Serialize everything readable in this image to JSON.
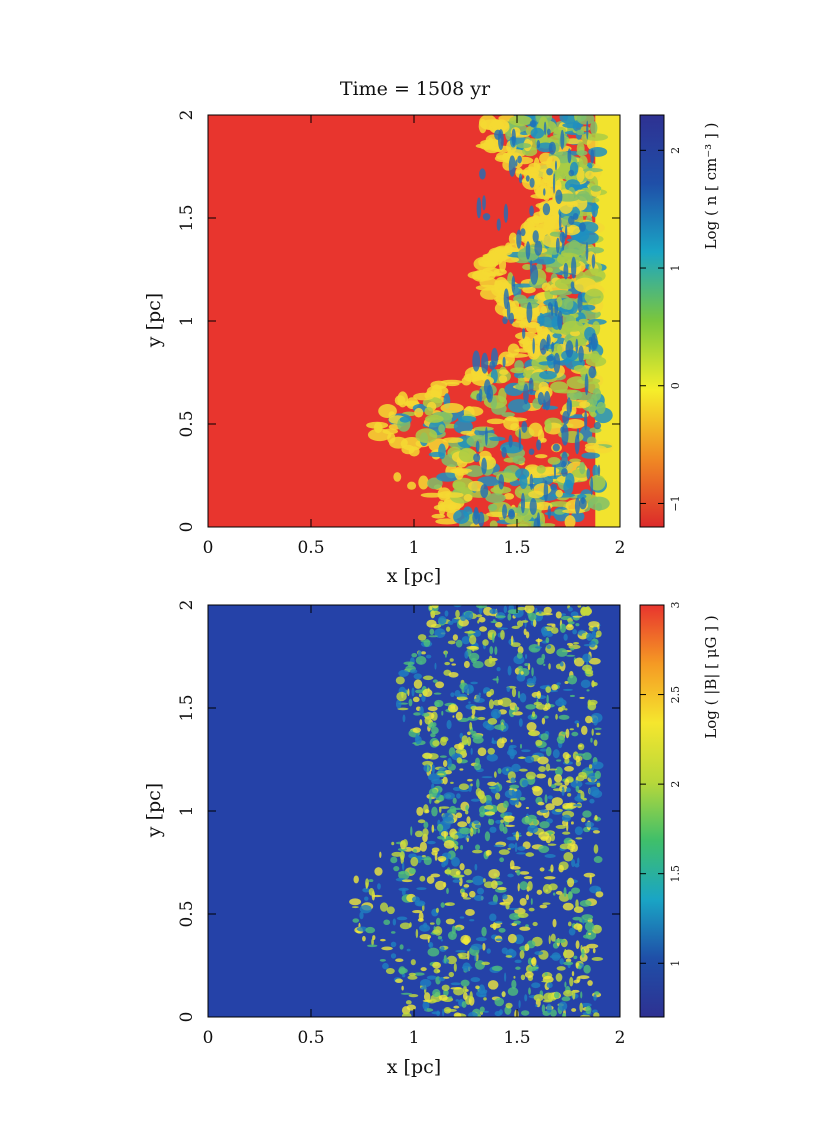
{
  "title": "Time = 1508 yr",
  "chart_data": [
    {
      "type": "heatmap",
      "name": "density-map",
      "xlabel": "x [pc]",
      "ylabel": "y [pc]",
      "xlim": [
        0,
        2
      ],
      "ylim": [
        0,
        2
      ],
      "xticks": [
        0,
        0.5,
        1,
        1.5,
        2
      ],
      "yticks": [
        0,
        0.5,
        1,
        1.5,
        2
      ],
      "xtick_labels": [
        "0",
        "0.5",
        "1",
        "1.5",
        "2"
      ],
      "ytick_labels": [
        "0",
        "0.5",
        "1",
        "1.5",
        "2"
      ],
      "colorbar": {
        "label": "Log ( n [ cm⁻³ ] )",
        "range": [
          -1.2,
          2.3
        ],
        "ticks": [
          -1,
          0,
          1,
          2
        ],
        "tick_labels": [
          "−1",
          "0",
          "1",
          "2"
        ],
        "colormap": [
          "#dc2a2a",
          "#f08a24",
          "#f5ef2a",
          "#7bc63c",
          "#1aa5c5",
          "#1f4fa8",
          "#2e3192"
        ]
      },
      "background_color": "#e8352e",
      "front_color": "#f2e32e",
      "region_colors": [
        "#f5d933",
        "#a9cc45",
        "#7fbf6a",
        "#1f8fbf"
      ]
    },
    {
      "type": "heatmap",
      "name": "magnetic-field-map",
      "xlabel": "x [pc]",
      "ylabel": "y [pc]",
      "xlim": [
        0,
        2
      ],
      "ylim": [
        0,
        2
      ],
      "xticks": [
        0,
        0.5,
        1,
        1.5,
        2
      ],
      "yticks": [
        0,
        0.5,
        1,
        1.5,
        2
      ],
      "xtick_labels": [
        "0",
        "0.5",
        "1",
        "1.5",
        "2"
      ],
      "ytick_labels": [
        "0",
        "0.5",
        "1",
        "1.5",
        "2"
      ],
      "colorbar": {
        "label": "Log ( |B| [ μG ] )",
        "range": [
          0.7,
          3.0
        ],
        "ticks": [
          1,
          1.5,
          2,
          2.5,
          3
        ],
        "tick_labels": [
          "1",
          "1.5",
          "2",
          "2.5",
          "3"
        ],
        "colormap": [
          "#2e3192",
          "#1f4fa8",
          "#1aa5c5",
          "#3fbf6a",
          "#b8d83a",
          "#f5e62e",
          "#f59a24",
          "#e8352e"
        ]
      },
      "background_color": "#2542a8",
      "region_colors": [
        "#1f7fc0",
        "#4fbf7a",
        "#c4dc3a",
        "#f0e83a"
      ]
    }
  ]
}
